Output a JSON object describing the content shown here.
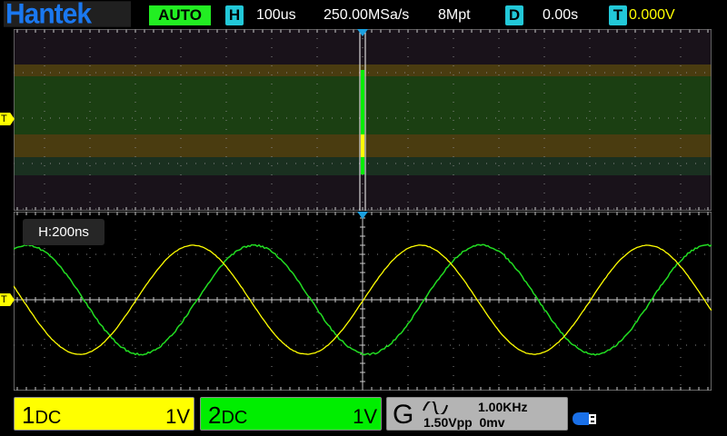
{
  "header": {
    "logo": "Hantek",
    "run_mode": "AUTO",
    "horizontal_badge": "H",
    "timebase": "100us",
    "sample_rate": "250.00MSa/s",
    "memory_depth": "8Mpt",
    "delay_badge": "D",
    "delay": "0.00s",
    "trigger_badge": "T",
    "trigger_level": "0.000V"
  },
  "zoom_window": {
    "timebase_label": "H:200ns"
  },
  "trigger_marker": "T",
  "channels": [
    {
      "number": "1",
      "coupling": "DC",
      "scale": "1V",
      "color": "#ffff00"
    },
    {
      "number": "2",
      "coupling": "DC",
      "scale": "1V",
      "color": "#00ee00"
    }
  ],
  "generator": {
    "label": "G",
    "waveform_icon": "sine-wave-icon",
    "frequency": "1.00KHz",
    "amplitude": "1.50Vpp",
    "offset": "0mv"
  },
  "status_icons": [
    "usb-drive-icon"
  ],
  "colors": {
    "accent": "#22c8d8",
    "auto": "#22ee22",
    "ch1": "#ffff00",
    "ch2": "#00ee00",
    "brand": "#1a78f0"
  }
}
